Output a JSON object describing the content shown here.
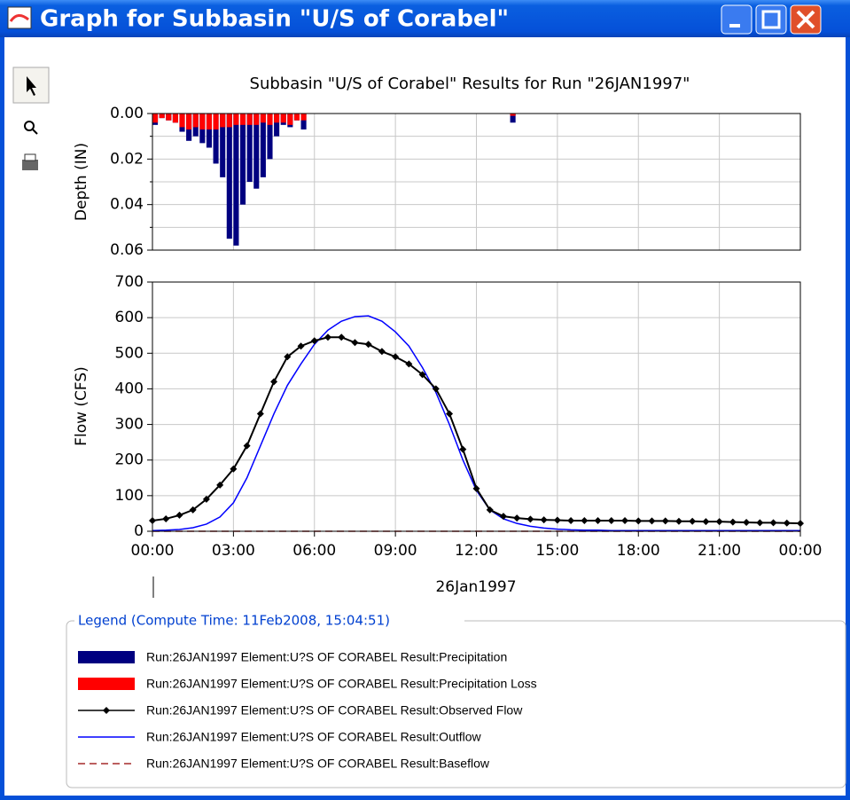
{
  "window_title": "Graph for Subbasin \"U/S of Corabel\"",
  "legend_title": "Legend (Compute Time: 11Feb2008, 15:04:51)",
  "chart_data": [
    {
      "type": "bar",
      "title": "Subbasin \"U/S of Corabel\" Results for Run \"26JAN1997\"",
      "ylabel": "Depth (IN)",
      "inverted": true,
      "x": [
        0,
        0.25,
        0.5,
        0.75,
        1,
        1.25,
        1.5,
        1.75,
        2,
        2.25,
        2.5,
        2.75,
        3,
        3.25,
        3.5,
        3.75,
        4,
        4.25,
        4.5,
        4.75,
        5,
        5.25,
        5.5,
        13.25
      ],
      "series": [
        {
          "name": "Run:26JAN1997 Element:U?S OF CORABEL Result:Precipitation",
          "color": "#000080",
          "values": [
            0.005,
            0.002,
            0.003,
            0.004,
            0.008,
            0.012,
            0.01,
            0.013,
            0.015,
            0.022,
            0.028,
            0.055,
            0.058,
            0.04,
            0.03,
            0.033,
            0.028,
            0.02,
            0.01,
            0.005,
            0.006,
            0.003,
            0.007,
            0.004
          ]
        },
        {
          "name": "Run:26JAN1997 Element:U?S OF CORABEL Result:Precipitation Loss",
          "color": "#ff0000",
          "values": [
            0.004,
            0.002,
            0.003,
            0.004,
            0.006,
            0.007,
            0.006,
            0.007,
            0.007,
            0.007,
            0.006,
            0.006,
            0.005,
            0.005,
            0.005,
            0.005,
            0.004,
            0.005,
            0.004,
            0.004,
            0.005,
            0.003,
            0.003,
            0.001
          ]
        }
      ],
      "xlim": [
        0,
        24
      ],
      "xticks": [
        0,
        3,
        6,
        9,
        12,
        15,
        18,
        21,
        24
      ],
      "ylim": [
        0,
        0.06
      ],
      "yticks": [
        {
          "value": 0,
          "label": "0.00"
        },
        {
          "value": 0.02,
          "label": "0.02"
        },
        {
          "value": 0.04,
          "label": "0.04"
        },
        {
          "value": 0.06,
          "label": "0.06"
        }
      ],
      "yminor": [
        0.01,
        0.03,
        0.05
      ],
      "grid": true
    },
    {
      "type": "line",
      "ylabel": "Flow (CFS)",
      "xlabel": "26Jan1997",
      "x": [
        0,
        0.5,
        1,
        1.5,
        2,
        2.5,
        3,
        3.5,
        4,
        4.5,
        5,
        5.5,
        6,
        6.5,
        7,
        7.5,
        8,
        8.5,
        9,
        9.5,
        10,
        10.5,
        11,
        11.5,
        12,
        12.5,
        13,
        13.5,
        14,
        14.5,
        15,
        15.5,
        16,
        16.5,
        17,
        17.5,
        18,
        18.5,
        19,
        19.5,
        20,
        20.5,
        21,
        21.5,
        22,
        22.5,
        23,
        23.5,
        24
      ],
      "series": [
        {
          "name": "Run:26JAN1997 Element:U?S OF CORABEL Result:Observed Flow",
          "color": "#000000",
          "marker": true,
          "values": [
            30,
            35,
            45,
            60,
            90,
            130,
            175,
            240,
            330,
            420,
            490,
            520,
            535,
            545,
            545,
            530,
            525,
            505,
            490,
            470,
            440,
            400,
            330,
            230,
            120,
            60,
            42,
            37,
            34,
            32,
            31,
            30,
            30,
            30,
            30,
            30,
            29,
            29,
            29,
            28,
            28,
            27,
            27,
            26,
            25,
            24,
            24,
            23,
            22
          ]
        },
        {
          "name": "Run:26JAN1997 Element:U?S OF CORABEL Result:Outflow",
          "color": "#0000ff",
          "values": [
            2,
            3,
            5,
            10,
            20,
            40,
            80,
            150,
            240,
            330,
            410,
            470,
            525,
            565,
            590,
            603,
            605,
            590,
            560,
            520,
            460,
            390,
            300,
            200,
            115,
            60,
            35,
            22,
            14,
            9,
            6,
            4,
            3,
            3,
            2,
            2,
            2,
            2,
            2,
            2,
            2,
            2,
            2,
            2,
            2,
            2,
            2,
            2,
            2
          ]
        },
        {
          "name": "Run:26JAN1997 Element:U?S OF CORABEL Result:Baseflow",
          "color": "#a52a2a",
          "dashed": true,
          "values": [
            0,
            0,
            0,
            0,
            0,
            0,
            0,
            0,
            0,
            0,
            0,
            0,
            0,
            0,
            0,
            0,
            0,
            0,
            0,
            0,
            0,
            0,
            0,
            0,
            0,
            0,
            0,
            0,
            0,
            0,
            0,
            0,
            0,
            0,
            0,
            0,
            0,
            0,
            0,
            0,
            0,
            0,
            0,
            0,
            0,
            0,
            0,
            0,
            0
          ]
        }
      ],
      "xlim": [
        0,
        24
      ],
      "xticks": [
        {
          "value": 0,
          "label": "00:00"
        },
        {
          "value": 3,
          "label": "03:00"
        },
        {
          "value": 6,
          "label": "06:00"
        },
        {
          "value": 9,
          "label": "09:00"
        },
        {
          "value": 12,
          "label": "12:00"
        },
        {
          "value": 15,
          "label": "15:00"
        },
        {
          "value": 18,
          "label": "18:00"
        },
        {
          "value": 21,
          "label": "21:00"
        },
        {
          "value": 24,
          "label": "00:00"
        }
      ],
      "ylim": [
        0,
        700
      ],
      "yticks": [
        0,
        100,
        200,
        300,
        400,
        500,
        600,
        700
      ],
      "grid": true
    }
  ]
}
